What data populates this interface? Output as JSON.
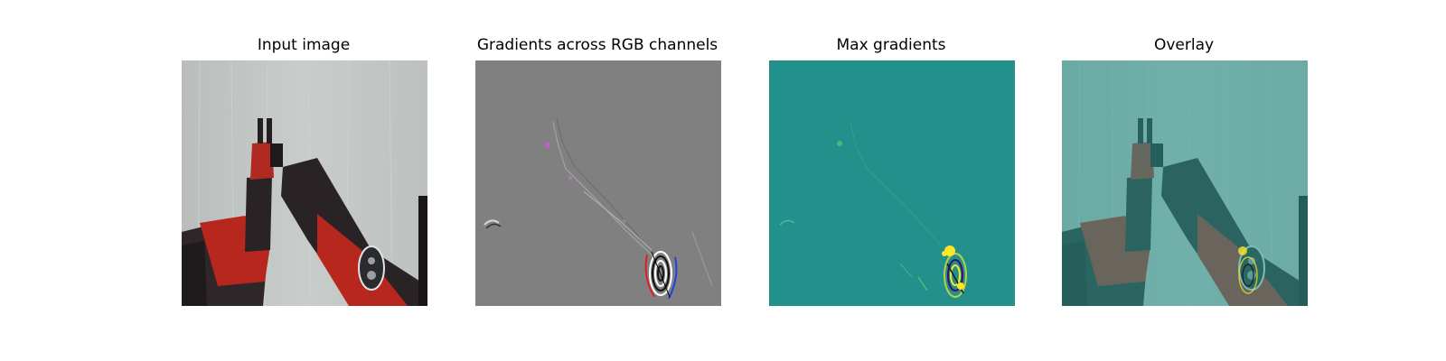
{
  "panels": [
    {
      "title": "Input image"
    },
    {
      "title": "Gradients across RGB channels"
    },
    {
      "title": "Max gradients"
    },
    {
      "title": "Overlay"
    }
  ],
  "colors": {
    "curtain": "#c3c7c6",
    "robot_red": "#b8271e",
    "robot_dark": "#2e2628",
    "gradient_bg": "#808080",
    "max_bg": "#22908b",
    "overlay_tint": "#2a9990"
  }
}
